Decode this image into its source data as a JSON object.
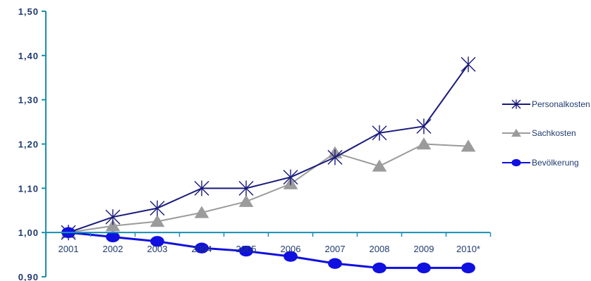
{
  "chart_data": {
    "type": "line",
    "title": "",
    "xlabel": "",
    "ylabel": "",
    "categories": [
      "2001",
      "2002",
      "2003",
      "2004",
      "2005",
      "2006",
      "2007",
      "2008",
      "2009",
      "2010*"
    ],
    "ylim": [
      0.9,
      1.5
    ],
    "yticks": [
      0.9,
      1.0,
      1.1,
      1.2,
      1.3,
      1.4,
      1.5
    ],
    "ytick_labels": [
      "0,90",
      "1,00",
      "1,10",
      "1,20",
      "1,30",
      "1,40",
      "1,50"
    ],
    "x_axis_crosses_at": 1.0,
    "grid": false,
    "legend_position": "right",
    "series": [
      {
        "name": "Personalkosten",
        "marker": "star",
        "color": "#1a1a7a",
        "values": [
          1.0,
          1.035,
          1.055,
          1.1,
          1.1,
          1.125,
          1.17,
          1.225,
          1.24,
          1.38
        ]
      },
      {
        "name": "Sachkosten",
        "marker": "triangle",
        "color": "#9b9b9b",
        "values": [
          1.0,
          1.015,
          1.025,
          1.045,
          1.07,
          1.11,
          1.18,
          1.15,
          1.2,
          1.195
        ]
      },
      {
        "name": "Bevölkerung",
        "marker": "circle",
        "color": "#1010e0",
        "values": [
          1.0,
          0.99,
          0.98,
          0.965,
          0.958,
          0.946,
          0.93,
          0.92,
          0.92,
          0.92
        ]
      }
    ],
    "axis_color": "#1a8fb0"
  }
}
